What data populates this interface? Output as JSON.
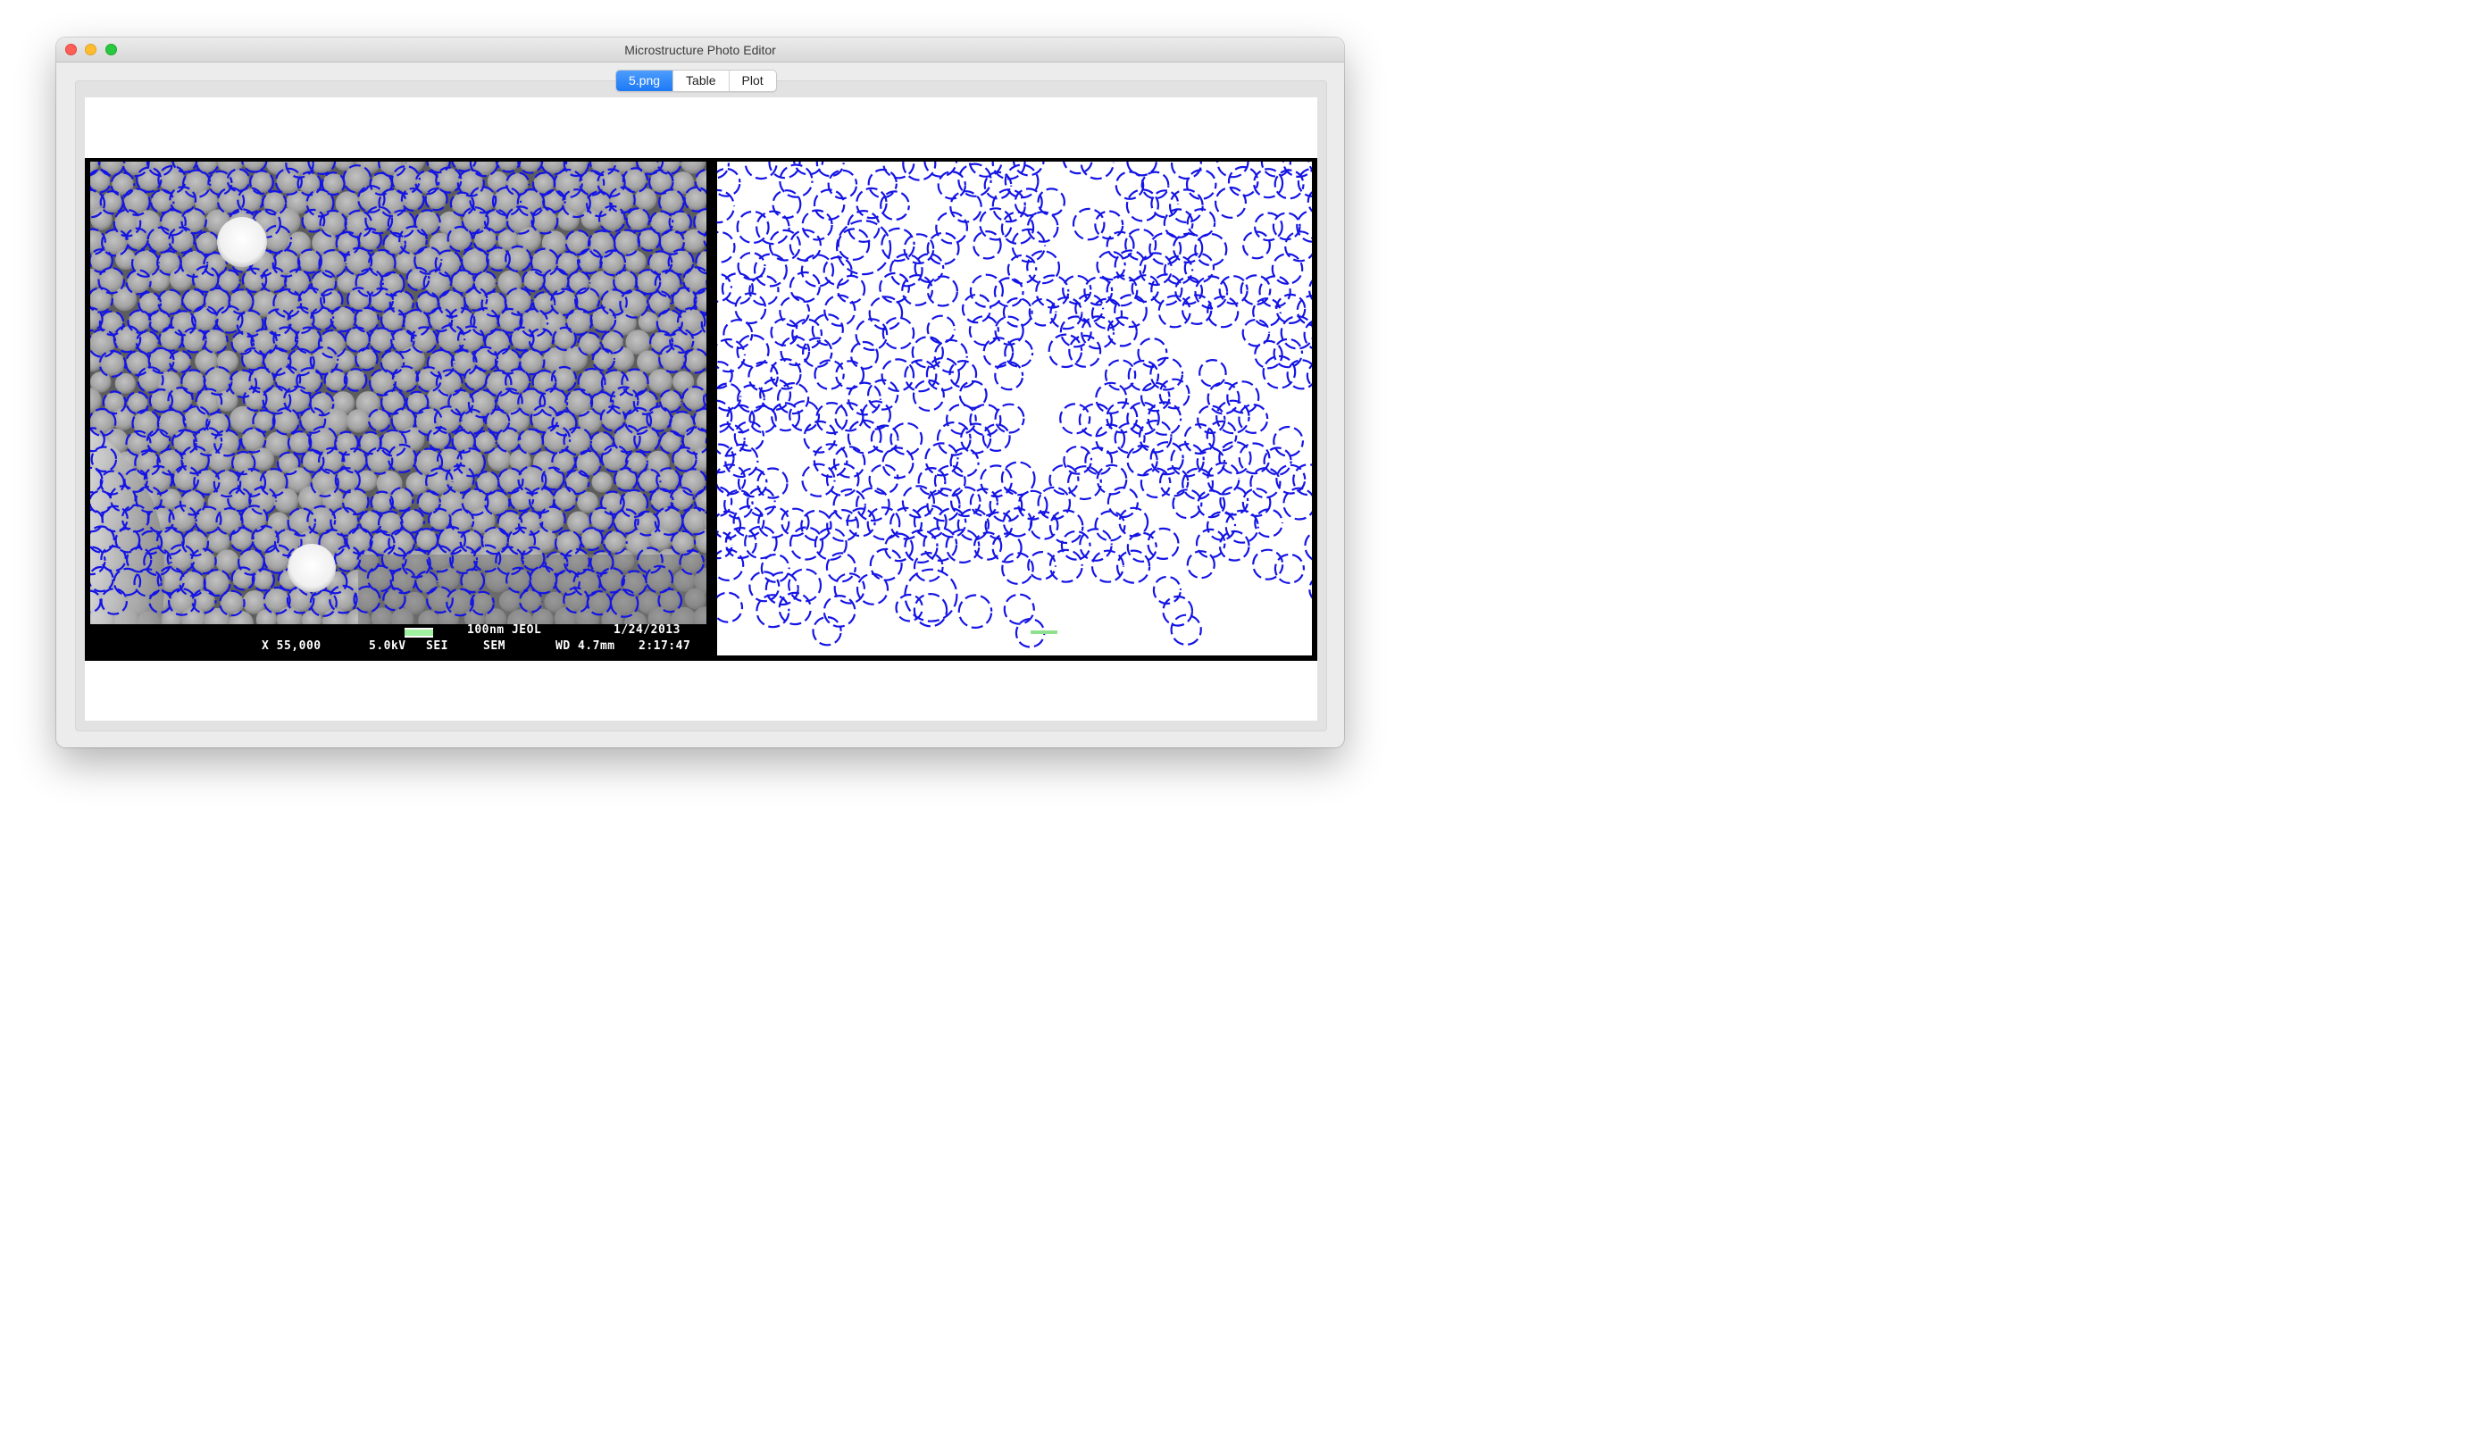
{
  "window": {
    "title": "Microstructure Photo Editor"
  },
  "tabs": [
    {
      "label": "5.png",
      "active": true
    },
    {
      "label": "Table",
      "active": false
    },
    {
      "label": "Plot",
      "active": false
    }
  ],
  "sem_info": {
    "scale_label": "100nm JEOL",
    "date": "1/24/2013",
    "magnification": "X 55,000",
    "voltage": "5.0kV",
    "detector": "SEI",
    "mode": "SEM",
    "working_distance": "WD 4.7mm",
    "time": "2:17:47"
  },
  "colors": {
    "circle_stroke": "#1414e6",
    "scale_bar": "#8fe08f",
    "accent_tab": "#1c79f5"
  }
}
